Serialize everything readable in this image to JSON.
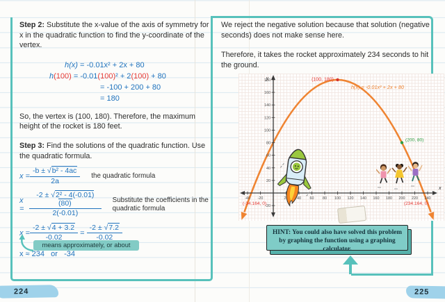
{
  "colors": {
    "teal": "#57c1bb",
    "math_blue": "#1e72bd",
    "accent_red": "#e63a35",
    "curve_orange": "#ef8432",
    "point_green": "#2f9e44",
    "hint_fill": "#7fccc7",
    "highlight_blue": "#9fd2ea"
  },
  "left_page": {
    "step2_label": "Step 2:",
    "step2_text": " Substitute the x-value of the axis of symmetry for x in the quadratic function to find the y-coordinate of the vertex.",
    "work": {
      "l1a": "h(x)",
      "l1b": " = -0.01x² + 2x + 80",
      "l2a": "h",
      "l2b": "(100)",
      "l2c": " = -0.01",
      "l2d": "(100)",
      "l2e": "² + 2",
      "l2f": "(100)",
      "l2g": " + 80",
      "l3": "= -100 + 200 + 80",
      "l4": "= 180"
    },
    "vertex_sentence": "So, the vertex is (100, 180). Therefore, the maximum height of the rocket is 180 feet.",
    "step3_label": "Step 3:",
    "step3_text": " Find the solutions of the quadratic function. Use the quadratic formula.",
    "f1": {
      "lead": "x = ",
      "num_pre": "-b ± ",
      "rad": "√",
      "num_rad": "b² - 4ac",
      "den": "2a",
      "note": "the quadratic formula"
    },
    "f2": {
      "lead": "x = ",
      "num_pre": "-2 ± ",
      "rad": "√",
      "num_rad": "2² - 4(-0.01)(80)",
      "den": "2(-0.01)",
      "note1": "Substitute the coefficients in the",
      "note2": "quadratic formula"
    },
    "f3": {
      "lead": "x = ",
      "num_pre1": "-2 ± ",
      "rad1": "√",
      "num_rad1": "4 + 3.2",
      "den1": "-0.02",
      "eq": " = ",
      "num_pre2": "-2 ± ",
      "rad2": "√",
      "num_rad2": "7.2",
      "den2": "-0.02"
    },
    "f4": "x ≈ 234   or   -34",
    "callout": "means approximately, or about",
    "page_number": "224"
  },
  "right_page": {
    "para1": "We reject the negative solution because that solution (negative seconds) does not make sense here.",
    "para2": "Therefore, it takes the rocket approximately 234 seconds to hit the ground.",
    "hint_label": "HINT:",
    "hint_text": " You could also have solved this problem by graphing the function using a graphing calculator.",
    "page_number": "225"
  },
  "graph": {
    "type": "line",
    "function_label": "h(x) = -0.01x² + 2x + 80",
    "y_axis_label": "y",
    "x_axis_label": "x",
    "x_ticks": [
      -40,
      -20,
      20,
      40,
      60,
      80,
      100,
      120,
      140,
      160,
      180,
      200,
      220,
      240
    ],
    "y_ticks": [
      -20,
      20,
      40,
      60,
      80,
      100,
      120,
      140,
      160,
      180
    ],
    "vertex_label": "(100, 180)",
    "vertex_point": [
      100,
      180
    ],
    "point_label": "(200, 80)",
    "point": [
      200,
      80
    ],
    "root_left_label": "(-34.164, 0)",
    "root_right_label": "(234.164, 0)",
    "xlim": [
      -48,
      250
    ],
    "ylim": [
      -28,
      188
    ]
  }
}
